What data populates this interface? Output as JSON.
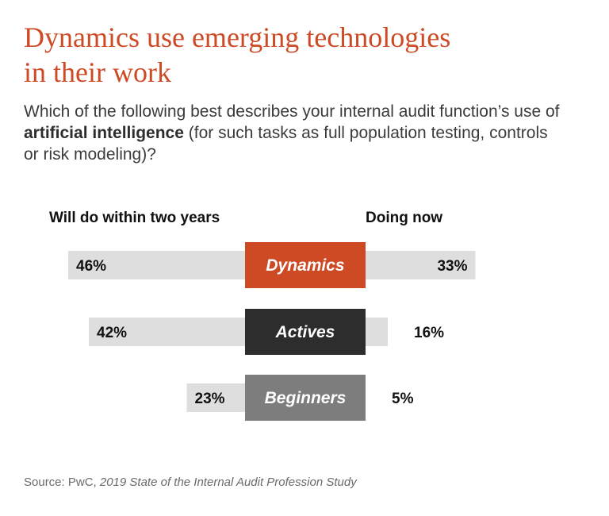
{
  "title_line1": "Dynamics use emerging technologies",
  "title_line2": "in their work",
  "question": {
    "before": "Which of the following best describes your internal audit function’s use of ",
    "emphasis": "artificial intelligence",
    "after": " (for such tasks as full population testing, controls or risk modeling)?"
  },
  "source": {
    "prefix": "Source: PwC, ",
    "title": "2019 State of the Internal Audit Profession Study"
  },
  "colors": {
    "dynamics": "#cd4a25",
    "actives": "#2d2d2d",
    "beginners": "#7d7d7d",
    "bar_track": "#dedede"
  },
  "chart_data": {
    "type": "bar",
    "orientation": "horizontal-diverging",
    "categories": [
      "Dynamics",
      "Actives",
      "Beginners"
    ],
    "series": [
      {
        "name": "Will do within two years",
        "values": [
          46,
          42,
          23
        ],
        "unit": "%",
        "side": "left"
      },
      {
        "name": "Doing now",
        "values": [
          33,
          16,
          5
        ],
        "unit": "%",
        "side": "right"
      }
    ],
    "data_labels": {
      "left": [
        "46%",
        "42%",
        "23%"
      ],
      "right": [
        "33%",
        "16%",
        "5%"
      ]
    }
  }
}
